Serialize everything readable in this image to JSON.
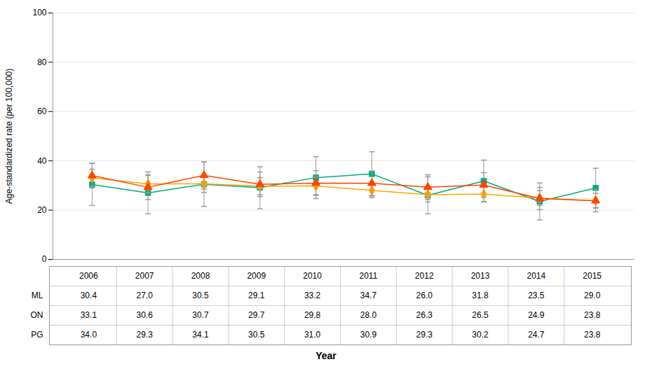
{
  "chart_data": {
    "type": "line",
    "xlabel": "Year",
    "ylabel": "Age-standardized rate (per 100,000)",
    "x": [
      2006,
      2007,
      2008,
      2009,
      2010,
      2011,
      2012,
      2013,
      2014,
      2015
    ],
    "xlim": [
      2005.3,
      2015.7
    ],
    "ylim": [
      0,
      100
    ],
    "yticks": [
      0,
      20,
      40,
      60,
      80,
      100
    ],
    "grid": true,
    "tick_labels": "y",
    "data_labels": true,
    "series": [
      {
        "name": "ML",
        "color": "#00AA80",
        "marker": "square",
        "values": [
          30.4,
          27.0,
          30.5,
          29.1,
          33.2,
          34.7,
          26.0,
          31.8,
          23.5,
          29.0
        ],
        "errors": [
          8.5,
          8.5,
          9.0,
          8.5,
          8.5,
          9.0,
          7.5,
          8.5,
          7.5,
          8.0
        ],
        "value_labels": [
          "30.4",
          "27.0",
          "30.5",
          "29.1",
          "33.2",
          "34.7",
          "26.0",
          "31.8",
          "23.5",
          "29.0"
        ]
      },
      {
        "name": "ON",
        "color": "#FFA500",
        "marker": "diamond",
        "values": [
          33.1,
          30.6,
          30.7,
          29.7,
          29.8,
          28.0,
          26.3,
          26.5,
          24.9,
          23.8
        ],
        "errors": [
          3.5,
          3.5,
          3.5,
          3.5,
          3.5,
          3.0,
          3.0,
          3.0,
          3.0,
          3.0
        ],
        "value_labels": [
          "33.1",
          "30.6",
          "30.7",
          "29.7",
          "29.8",
          "28.0",
          "26.3",
          "26.5",
          "24.9",
          "23.8"
        ]
      },
      {
        "name": "PG",
        "color": "#FF4500",
        "marker": "triangle",
        "values": [
          34.0,
          29.3,
          34.1,
          30.5,
          31.0,
          30.9,
          29.3,
          30.2,
          24.7,
          23.8
        ],
        "errors": [
          5.0,
          5.0,
          5.5,
          5.0,
          5.0,
          5.0,
          5.0,
          5.0,
          4.5,
          4.5
        ],
        "value_labels": [
          "34.0",
          "29.3",
          "34.1",
          "30.5",
          "31.0",
          "30.9",
          "29.3",
          "30.2",
          "24.7",
          "23.8"
        ]
      }
    ]
  }
}
